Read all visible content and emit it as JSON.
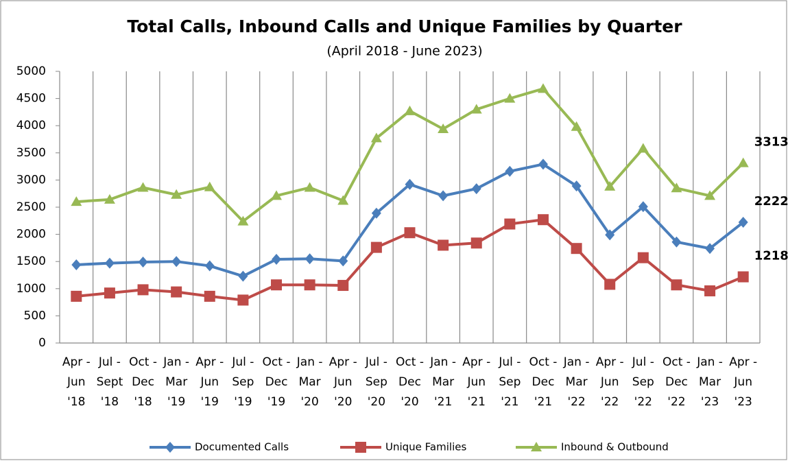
{
  "chart_data": {
    "type": "line",
    "title": "Total Calls, Inbound Calls and Unique Families by Quarter",
    "subtitle": "(April 2018 - June 2023)",
    "categories": [
      "Apr - Jun '18",
      "Jul - Sept '18",
      "Oct - Dec '18",
      "Jan - Mar '19",
      "Apr - Jun '19",
      "Jul - Sep '19",
      "Oct - Dec '19",
      "Jan - Mar '20",
      "Apr - Jun '20",
      "Jul - Sep '20",
      "Oct - Dec '20",
      "Jan - Mar '21",
      "Apr - Jun '21",
      "Jul - Sep '21",
      "Oct - Dec '21",
      "Jan - Mar '22",
      "Apr - Jun '22",
      "Jul - Sep '22",
      "Oct - Dec '22",
      "Jan - Mar '23",
      "Apr - Jun '23"
    ],
    "series": [
      {
        "name": "Documented Calls",
        "color": "#4a7ebb",
        "marker": "diamond",
        "values": [
          1440,
          1470,
          1490,
          1500,
          1420,
          1230,
          1540,
          1550,
          1510,
          2390,
          2920,
          2710,
          2840,
          3160,
          3290,
          2890,
          1990,
          2510,
          1860,
          1740,
          2222
        ]
      },
      {
        "name": "Unique Families",
        "color": "#be4b48",
        "marker": "square",
        "values": [
          860,
          920,
          980,
          940,
          860,
          790,
          1070,
          1070,
          1060,
          1760,
          2030,
          1800,
          1840,
          2190,
          2270,
          1740,
          1080,
          1570,
          1070,
          960,
          1218
        ]
      },
      {
        "name": "Inbound & Outbound",
        "color": "#98b954",
        "marker": "triangle",
        "values": [
          2600,
          2640,
          2860,
          2730,
          2870,
          2240,
          2710,
          2860,
          2620,
          3770,
          4270,
          3940,
          4300,
          4500,
          4680,
          3980,
          2880,
          3580,
          2850,
          2710,
          3313
        ]
      }
    ],
    "ylim": [
      0,
      5000
    ],
    "yticks": [
      0,
      500,
      1000,
      1500,
      2000,
      2500,
      3000,
      3500,
      4000,
      4500,
      5000
    ],
    "grid": "vertical",
    "legend": "bottom"
  }
}
